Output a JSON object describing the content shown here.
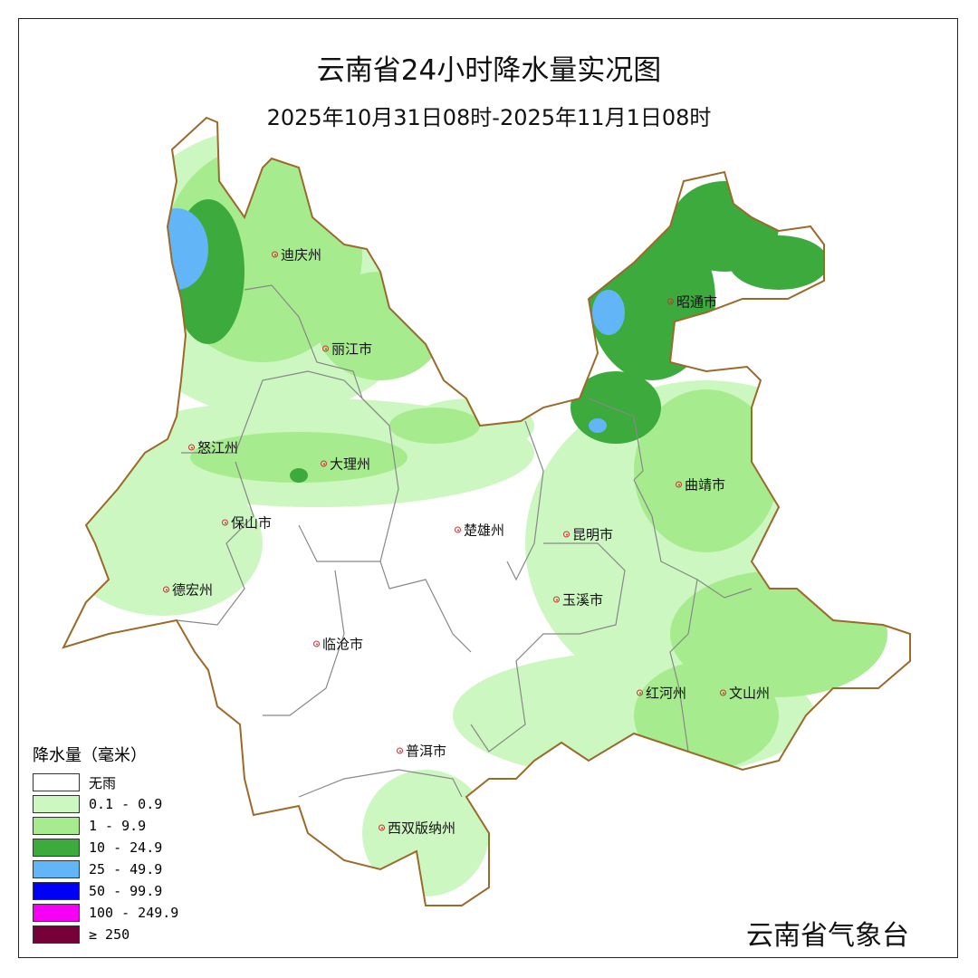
{
  "title": "云南省24小时降水量实况图",
  "subtitle": "2025年10月31日08时-2025年11月1日08时",
  "agency": "云南省气象台",
  "legend": {
    "title": "降水量（毫米）",
    "items": [
      {
        "label": "无雨",
        "color": "#ffffff"
      },
      {
        "label": "0.1 - 0.9",
        "color": "#ccf7c0"
      },
      {
        "label": "1 -  9.9",
        "color": "#a6ec8e"
      },
      {
        "label": "10 - 24.9",
        "color": "#3daa3d"
      },
      {
        "label": "25 - 49.9",
        "color": "#62b5f7"
      },
      {
        "label": "50 - 99.9",
        "color": "#0000f5"
      },
      {
        "label": "100 - 249.9",
        "color": "#f500f5"
      },
      {
        "label": "≥ 250",
        "color": "#760037"
      }
    ]
  },
  "cities": [
    "迪庆州",
    "丽江市",
    "昭通市",
    "怒江州",
    "大理州",
    "曲靖市",
    "保山市",
    "楚雄州",
    "昆明市",
    "德宏州",
    "玉溪市",
    "临沧市",
    "红河州",
    "文山州",
    "普洱市",
    "西双版纳州"
  ],
  "colors": {
    "border": "#9b6a2a",
    "inner_border": "#888888"
  }
}
